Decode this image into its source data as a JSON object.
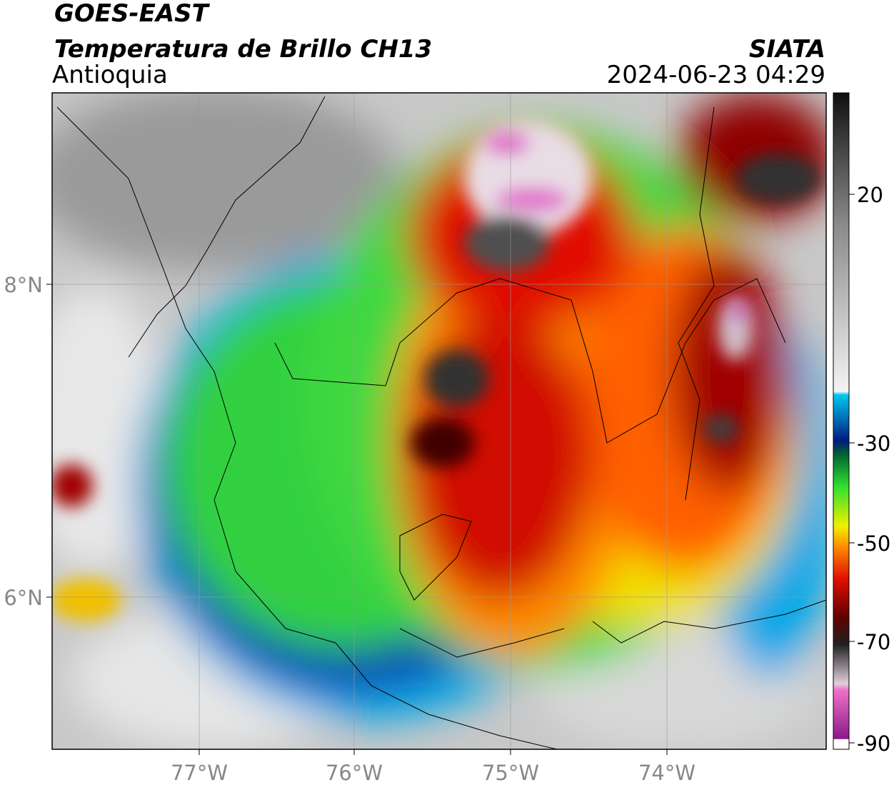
{
  "header": {
    "title": "GOES-EAST",
    "subtitle": "Temperatura de Brillo CH13",
    "region": "Antioquia",
    "source": "SIATA",
    "timestamp": "2024-06-23 04:29"
  },
  "map": {
    "lon_ticks": [
      "77°W",
      "76°W",
      "75°W",
      "74°W"
    ],
    "lat_ticks": [
      "8°N",
      "6°N"
    ]
  },
  "colorbar": {
    "ticks": [
      "20",
      "-30",
      "-50",
      "-70",
      "-90"
    ]
  }
}
